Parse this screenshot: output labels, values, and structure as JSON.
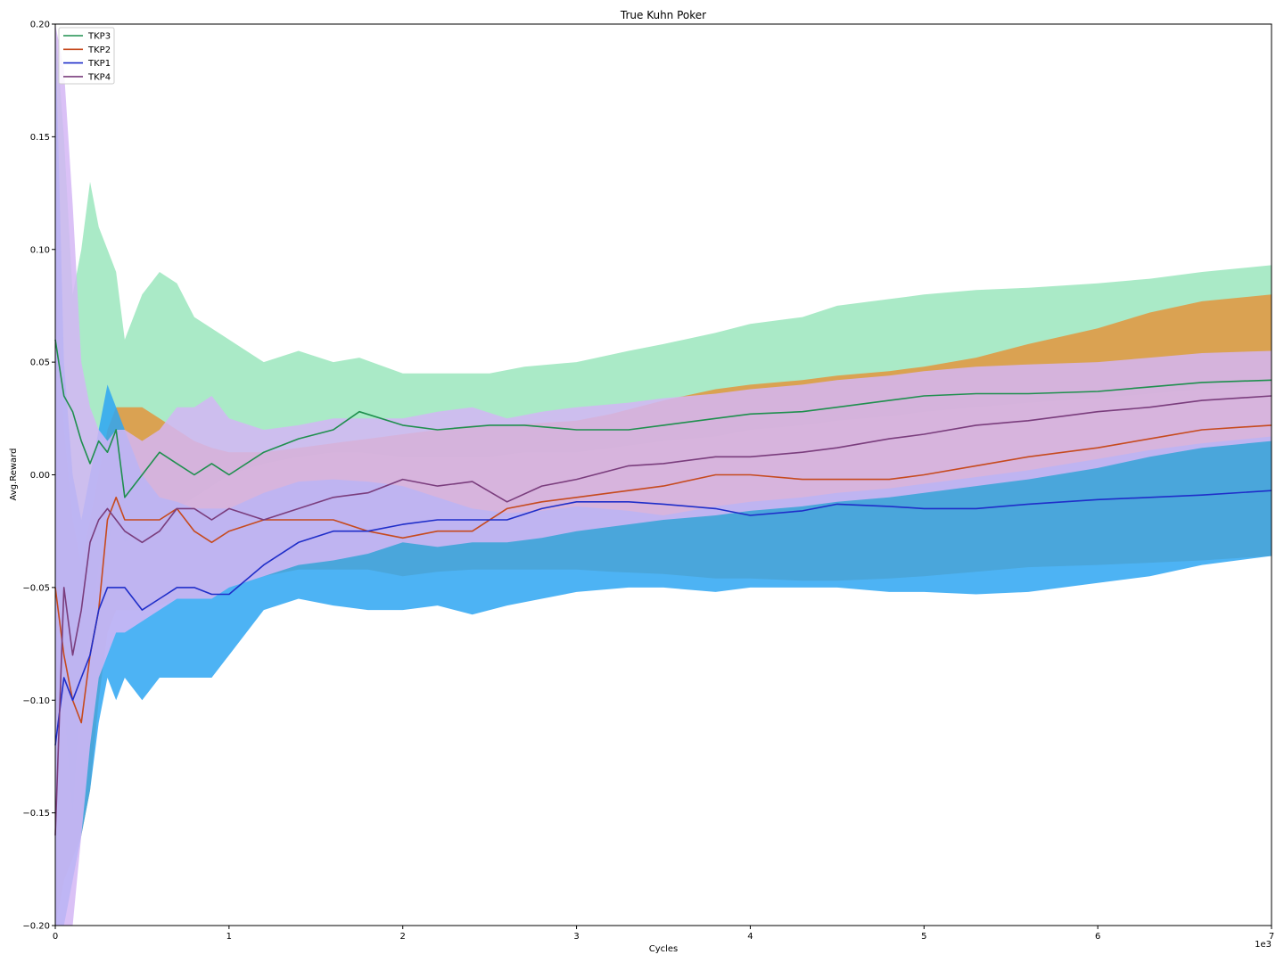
{
  "chart_data": {
    "type": "line",
    "title": "True Kuhn Poker",
    "xlabel": "Cycles",
    "ylabel": "Avg.Reward",
    "x_offset_text": "1e3",
    "xlim": [
      0,
      7
    ],
    "ylim": [
      -0.2,
      0.2
    ],
    "xticks": [
      "0",
      "1",
      "2",
      "3",
      "4",
      "5",
      "6",
      "7"
    ],
    "yticks": [
      "−0.20",
      "−0.15",
      "−0.10",
      "−0.05",
      "0.00",
      "0.05",
      "0.10",
      "0.15",
      "0.20"
    ],
    "grid": false,
    "legend_position": "upper-left",
    "series": [
      {
        "name": "TKP3",
        "line_color": "#1f8f4e",
        "band_color": "#9be6bd",
        "x": [
          0,
          0.05,
          0.1,
          0.15,
          0.2,
          0.25,
          0.3,
          0.35,
          0.4,
          0.5,
          0.6,
          0.7,
          0.8,
          0.9,
          1.0,
          1.2,
          1.4,
          1.6,
          1.75,
          2.0,
          2.2,
          2.5,
          2.7,
          3.0,
          3.3,
          3.5,
          3.8,
          4.0,
          4.3,
          4.5,
          4.8,
          5.0,
          5.3,
          5.6,
          6.0,
          6.3,
          6.6,
          7.0
        ],
        "values": [
          0.06,
          0.035,
          0.028,
          0.015,
          0.005,
          0.015,
          0.01,
          0.02,
          -0.01,
          0.0,
          0.01,
          0.005,
          0.0,
          0.005,
          0.0,
          0.01,
          0.016,
          0.02,
          0.028,
          0.022,
          0.02,
          0.022,
          0.022,
          0.02,
          0.02,
          0.022,
          0.025,
          0.027,
          0.028,
          0.03,
          0.033,
          0.035,
          0.036,
          0.036,
          0.037,
          0.039,
          0.041,
          0.042
        ],
        "upper": [
          0.2,
          0.15,
          0.08,
          0.1,
          0.13,
          0.11,
          0.1,
          0.09,
          0.06,
          0.08,
          0.09,
          0.085,
          0.07,
          0.065,
          0.06,
          0.05,
          0.055,
          0.05,
          0.052,
          0.045,
          0.045,
          0.045,
          0.048,
          0.05,
          0.055,
          0.058,
          0.063,
          0.067,
          0.07,
          0.075,
          0.078,
          0.08,
          0.082,
          0.083,
          0.085,
          0.087,
          0.09,
          0.093
        ],
        "lower": [
          -0.05,
          -0.1,
          -0.15,
          -0.09,
          -0.07,
          -0.04,
          -0.03,
          -0.02,
          -0.03,
          -0.025,
          -0.02,
          -0.015,
          -0.01,
          -0.005,
          0.0,
          0.005,
          0.008,
          0.01,
          0.01,
          0.008,
          0.008,
          0.008,
          0.01,
          0.01,
          0.013,
          0.015,
          0.017,
          0.02,
          0.022,
          0.024,
          0.026,
          0.028,
          0.03,
          0.032,
          0.034,
          0.036,
          0.038,
          0.04
        ]
      },
      {
        "name": "TKP2",
        "line_color": "#c64a1e",
        "band_color": "#e3953d",
        "x": [
          0,
          0.05,
          0.1,
          0.15,
          0.2,
          0.25,
          0.3,
          0.35,
          0.4,
          0.5,
          0.6,
          0.7,
          0.8,
          0.9,
          1.0,
          1.2,
          1.4,
          1.6,
          1.8,
          2.0,
          2.2,
          2.4,
          2.6,
          2.8,
          3.0,
          3.2,
          3.5,
          3.8,
          4.0,
          4.3,
          4.5,
          4.8,
          5.0,
          5.3,
          5.6,
          6.0,
          6.3,
          6.6,
          7.0
        ],
        "values": [
          -0.05,
          -0.08,
          -0.1,
          -0.11,
          -0.08,
          -0.06,
          -0.02,
          -0.01,
          -0.02,
          -0.02,
          -0.02,
          -0.015,
          -0.025,
          -0.03,
          -0.025,
          -0.02,
          -0.02,
          -0.02,
          -0.025,
          -0.028,
          -0.025,
          -0.025,
          -0.015,
          -0.012,
          -0.01,
          -0.008,
          -0.005,
          0.0,
          0.0,
          -0.002,
          -0.002,
          -0.002,
          0.0,
          0.004,
          0.008,
          0.012,
          0.016,
          0.02,
          0.022
        ],
        "upper": [
          0.1,
          0.02,
          -0.02,
          -0.04,
          -0.02,
          0.0,
          0.02,
          0.03,
          0.03,
          0.03,
          0.025,
          0.02,
          0.015,
          0.012,
          0.01,
          0.01,
          0.012,
          0.014,
          0.016,
          0.018,
          0.02,
          0.022,
          0.022,
          0.023,
          0.024,
          0.027,
          0.033,
          0.038,
          0.04,
          0.042,
          0.044,
          0.046,
          0.048,
          0.052,
          0.058,
          0.065,
          0.072,
          0.077,
          0.08
        ],
        "lower": [
          -0.2,
          -0.18,
          -0.17,
          -0.16,
          -0.14,
          -0.1,
          -0.07,
          -0.06,
          -0.06,
          -0.06,
          -0.058,
          -0.055,
          -0.055,
          -0.055,
          -0.05,
          -0.045,
          -0.042,
          -0.042,
          -0.042,
          -0.045,
          -0.043,
          -0.042,
          -0.042,
          -0.042,
          -0.042,
          -0.043,
          -0.044,
          -0.046,
          -0.046,
          -0.047,
          -0.047,
          -0.046,
          -0.045,
          -0.043,
          -0.041,
          -0.04,
          -0.039,
          -0.038,
          -0.036
        ]
      },
      {
        "name": "TKP1",
        "line_color": "#1f2ec9",
        "band_color": "#2ea6f2",
        "x": [
          0,
          0.05,
          0.1,
          0.15,
          0.2,
          0.25,
          0.3,
          0.35,
          0.4,
          0.5,
          0.6,
          0.7,
          0.8,
          0.9,
          1.0,
          1.2,
          1.4,
          1.6,
          1.8,
          2.0,
          2.2,
          2.4,
          2.6,
          2.8,
          3.0,
          3.3,
          3.5,
          3.8,
          4.0,
          4.3,
          4.5,
          4.8,
          5.0,
          5.3,
          5.6,
          6.0,
          6.3,
          6.6,
          7.0
        ],
        "values": [
          -0.12,
          -0.09,
          -0.1,
          -0.09,
          -0.08,
          -0.06,
          -0.05,
          -0.05,
          -0.05,
          -0.06,
          -0.055,
          -0.05,
          -0.05,
          -0.053,
          -0.053,
          -0.04,
          -0.03,
          -0.025,
          -0.025,
          -0.022,
          -0.02,
          -0.02,
          -0.02,
          -0.015,
          -0.012,
          -0.012,
          -0.013,
          -0.015,
          -0.018,
          -0.016,
          -0.013,
          -0.014,
          -0.015,
          -0.015,
          -0.013,
          -0.011,
          -0.01,
          -0.009,
          -0.007
        ],
        "upper": [
          0.2,
          0.05,
          0.0,
          -0.02,
          0.0,
          0.02,
          0.04,
          0.03,
          0.02,
          0.0,
          -0.01,
          -0.012,
          -0.015,
          -0.015,
          -0.015,
          -0.008,
          -0.003,
          -0.002,
          -0.003,
          -0.005,
          -0.01,
          -0.015,
          -0.017,
          -0.016,
          -0.014,
          -0.016,
          -0.018,
          -0.014,
          -0.012,
          -0.01,
          -0.008,
          -0.006,
          -0.004,
          -0.001,
          0.002,
          0.007,
          0.011,
          0.014,
          0.017
        ],
        "lower": [
          -0.2,
          -0.2,
          -0.18,
          -0.16,
          -0.14,
          -0.11,
          -0.09,
          -0.1,
          -0.09,
          -0.1,
          -0.09,
          -0.09,
          -0.09,
          -0.09,
          -0.08,
          -0.06,
          -0.055,
          -0.058,
          -0.06,
          -0.06,
          -0.058,
          -0.062,
          -0.058,
          -0.055,
          -0.052,
          -0.05,
          -0.05,
          -0.052,
          -0.05,
          -0.05,
          -0.05,
          -0.052,
          -0.052,
          -0.053,
          -0.052,
          -0.048,
          -0.045,
          -0.04,
          -0.036
        ]
      },
      {
        "name": "TKP4",
        "line_color": "#7a3d7d",
        "band_color": "#d3b6f4",
        "x": [
          0,
          0.05,
          0.1,
          0.15,
          0.2,
          0.25,
          0.3,
          0.35,
          0.4,
          0.5,
          0.6,
          0.7,
          0.8,
          0.9,
          1.0,
          1.2,
          1.4,
          1.6,
          1.8,
          2.0,
          2.2,
          2.4,
          2.6,
          2.8,
          3.0,
          3.3,
          3.5,
          3.8,
          4.0,
          4.3,
          4.5,
          4.8,
          5.0,
          5.3,
          5.6,
          6.0,
          6.3,
          6.6,
          7.0
        ],
        "values": [
          -0.16,
          -0.05,
          -0.08,
          -0.06,
          -0.03,
          -0.02,
          -0.015,
          -0.02,
          -0.025,
          -0.03,
          -0.025,
          -0.015,
          -0.015,
          -0.02,
          -0.015,
          -0.02,
          -0.015,
          -0.01,
          -0.008,
          -0.002,
          -0.005,
          -0.003,
          -0.012,
          -0.005,
          -0.002,
          0.004,
          0.005,
          0.008,
          0.008,
          0.01,
          0.012,
          0.016,
          0.018,
          0.022,
          0.024,
          0.028,
          0.03,
          0.033,
          0.035
        ],
        "upper": [
          0.2,
          0.18,
          0.12,
          0.05,
          0.03,
          0.02,
          0.015,
          0.02,
          0.02,
          0.015,
          0.02,
          0.03,
          0.03,
          0.035,
          0.025,
          0.02,
          0.022,
          0.025,
          0.025,
          0.025,
          0.028,
          0.03,
          0.025,
          0.028,
          0.03,
          0.032,
          0.034,
          0.036,
          0.038,
          0.04,
          0.042,
          0.044,
          0.046,
          0.048,
          0.049,
          0.05,
          0.052,
          0.054,
          0.055
        ],
        "lower": [
          -0.2,
          -0.2,
          -0.2,
          -0.16,
          -0.12,
          -0.09,
          -0.08,
          -0.07,
          -0.07,
          -0.065,
          -0.06,
          -0.055,
          -0.055,
          -0.055,
          -0.05,
          -0.045,
          -0.04,
          -0.038,
          -0.035,
          -0.03,
          -0.032,
          -0.03,
          -0.03,
          -0.028,
          -0.025,
          -0.022,
          -0.02,
          -0.018,
          -0.016,
          -0.014,
          -0.012,
          -0.01,
          -0.008,
          -0.005,
          -0.002,
          0.003,
          0.008,
          0.012,
          0.015
        ]
      }
    ]
  }
}
